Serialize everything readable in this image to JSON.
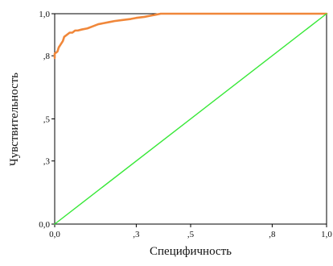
{
  "chart_data": {
    "type": "line",
    "title": "",
    "xlabel": "Специфичность",
    "ylabel": "Чувствительность",
    "xlim": [
      0,
      1
    ],
    "ylim": [
      0,
      1
    ],
    "grid": false,
    "x_ticks": [
      0.0,
      0.3,
      0.5,
      0.8,
      1.0
    ],
    "x_tick_labels": [
      "0,0",
      ",3",
      ",5",
      ",8",
      "1,0"
    ],
    "y_ticks": [
      0.0,
      0.3,
      0.5,
      0.8,
      1.0
    ],
    "y_tick_labels": [
      "0,0",
      ",3",
      ",5",
      ",8",
      "1,0"
    ],
    "series": [
      {
        "color": "#f0873a",
        "x": [
          0.0,
          0.0,
          0.01,
          0.015,
          0.02,
          0.025,
          0.03,
          0.035,
          0.045,
          0.055,
          0.065,
          0.075,
          0.085,
          0.1,
          0.12,
          0.14,
          0.16,
          0.18,
          0.2,
          0.22,
          0.25,
          0.28,
          0.3,
          0.33,
          0.35,
          0.37,
          0.39,
          0.4,
          0.45,
          0.55,
          0.7,
          0.85,
          1.0
        ],
        "y": [
          0.79,
          0.81,
          0.82,
          0.84,
          0.85,
          0.86,
          0.87,
          0.89,
          0.9,
          0.91,
          0.91,
          0.92,
          0.92,
          0.925,
          0.93,
          0.94,
          0.95,
          0.955,
          0.96,
          0.965,
          0.97,
          0.975,
          0.98,
          0.985,
          0.99,
          0.995,
          1.0,
          1.0,
          1.0,
          1.0,
          1.0,
          1.0,
          1.0
        ]
      },
      {
        "color": "#38e838",
        "x": [
          0.0,
          1.0
        ],
        "y": [
          0.0,
          1.0
        ]
      }
    ]
  }
}
